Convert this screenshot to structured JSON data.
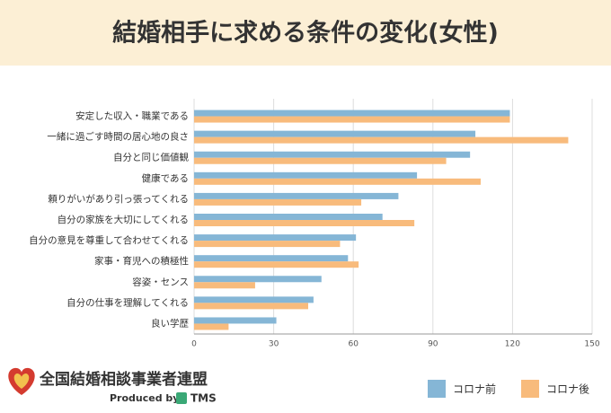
{
  "chart_data": {
    "type": "barh",
    "title": "結婚相手に求める条件の変化(女性)",
    "categories": [
      "安定した収入・職業である",
      "一緒に過ごす時間の居心地の良さ",
      "自分と同じ価値観",
      "健康である",
      "頼りがいがあり引っ張ってくれる",
      "自分の家族を大切にしてくれる",
      "自分の意見を尊重して合わせてくれる",
      "家事・育児への積極性",
      "容姿・センス",
      "自分の仕事を理解してくれる",
      "良い学歴"
    ],
    "series": [
      {
        "name": "コロナ前",
        "color": "#85b6d6",
        "values": [
          119,
          106,
          104,
          84,
          77,
          71,
          61,
          58,
          48,
          45,
          31
        ]
      },
      {
        "name": "コロナ後",
        "color": "#f8bb7c",
        "values": [
          119,
          141,
          95,
          108,
          63,
          83,
          55,
          62,
          23,
          43,
          13
        ]
      }
    ],
    "xlim": [
      0,
      150
    ],
    "xticks": [
      0,
      30,
      60,
      90,
      120,
      150
    ],
    "grid": true,
    "legend": "bottom-right"
  },
  "logo": {
    "name": "全国結婚相談事業者連盟",
    "produced_by": "Produced by",
    "brand": "TMS"
  }
}
